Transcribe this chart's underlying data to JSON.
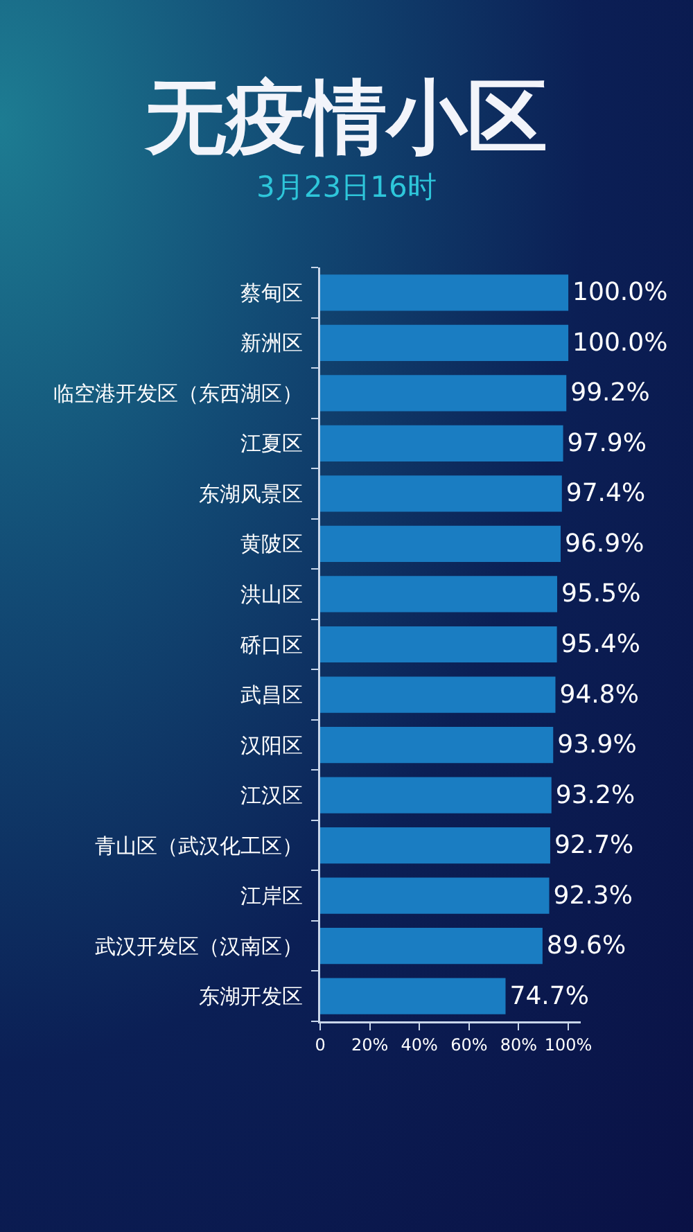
{
  "chart_data": {
    "type": "bar",
    "orientation": "horizontal",
    "title": "无疫情小区",
    "subtitle": "3月23日16时",
    "categories": [
      "蔡甸区",
      "新洲区",
      "临空港开发区（东西湖区）",
      "江夏区",
      "东湖风景区",
      "黄陂区",
      "洪山区",
      "硚口区",
      "武昌区",
      "汉阳区",
      "江汉区",
      "青山区（武汉化工区）",
      "江岸区",
      "武汉开发区（汉南区）",
      "东湖开发区"
    ],
    "values": [
      100.0,
      100.0,
      99.2,
      97.9,
      97.4,
      96.9,
      95.5,
      95.4,
      94.8,
      93.9,
      93.2,
      92.7,
      92.3,
      89.6,
      74.7
    ],
    "value_labels": [
      "100.0%",
      "100.0%",
      "99.2%",
      "97.9%",
      "97.4%",
      "96.9%",
      "95.5%",
      "95.4%",
      "94.8%",
      "93.9%",
      "93.2%",
      "92.7%",
      "92.3%",
      "89.6%",
      "74.7%"
    ],
    "color": "#1a7dc2",
    "xlim": [
      0,
      105
    ],
    "xticks": [
      0,
      {
        "value": 20,
        "label": "20%"
      },
      {
        "value": 40,
        "label": "40%"
      },
      {
        "value": 60,
        "label": "60%"
      },
      {
        "value": 80,
        "label": "80%"
      },
      {
        "value": 100,
        "label": "100%"
      }
    ]
  }
}
